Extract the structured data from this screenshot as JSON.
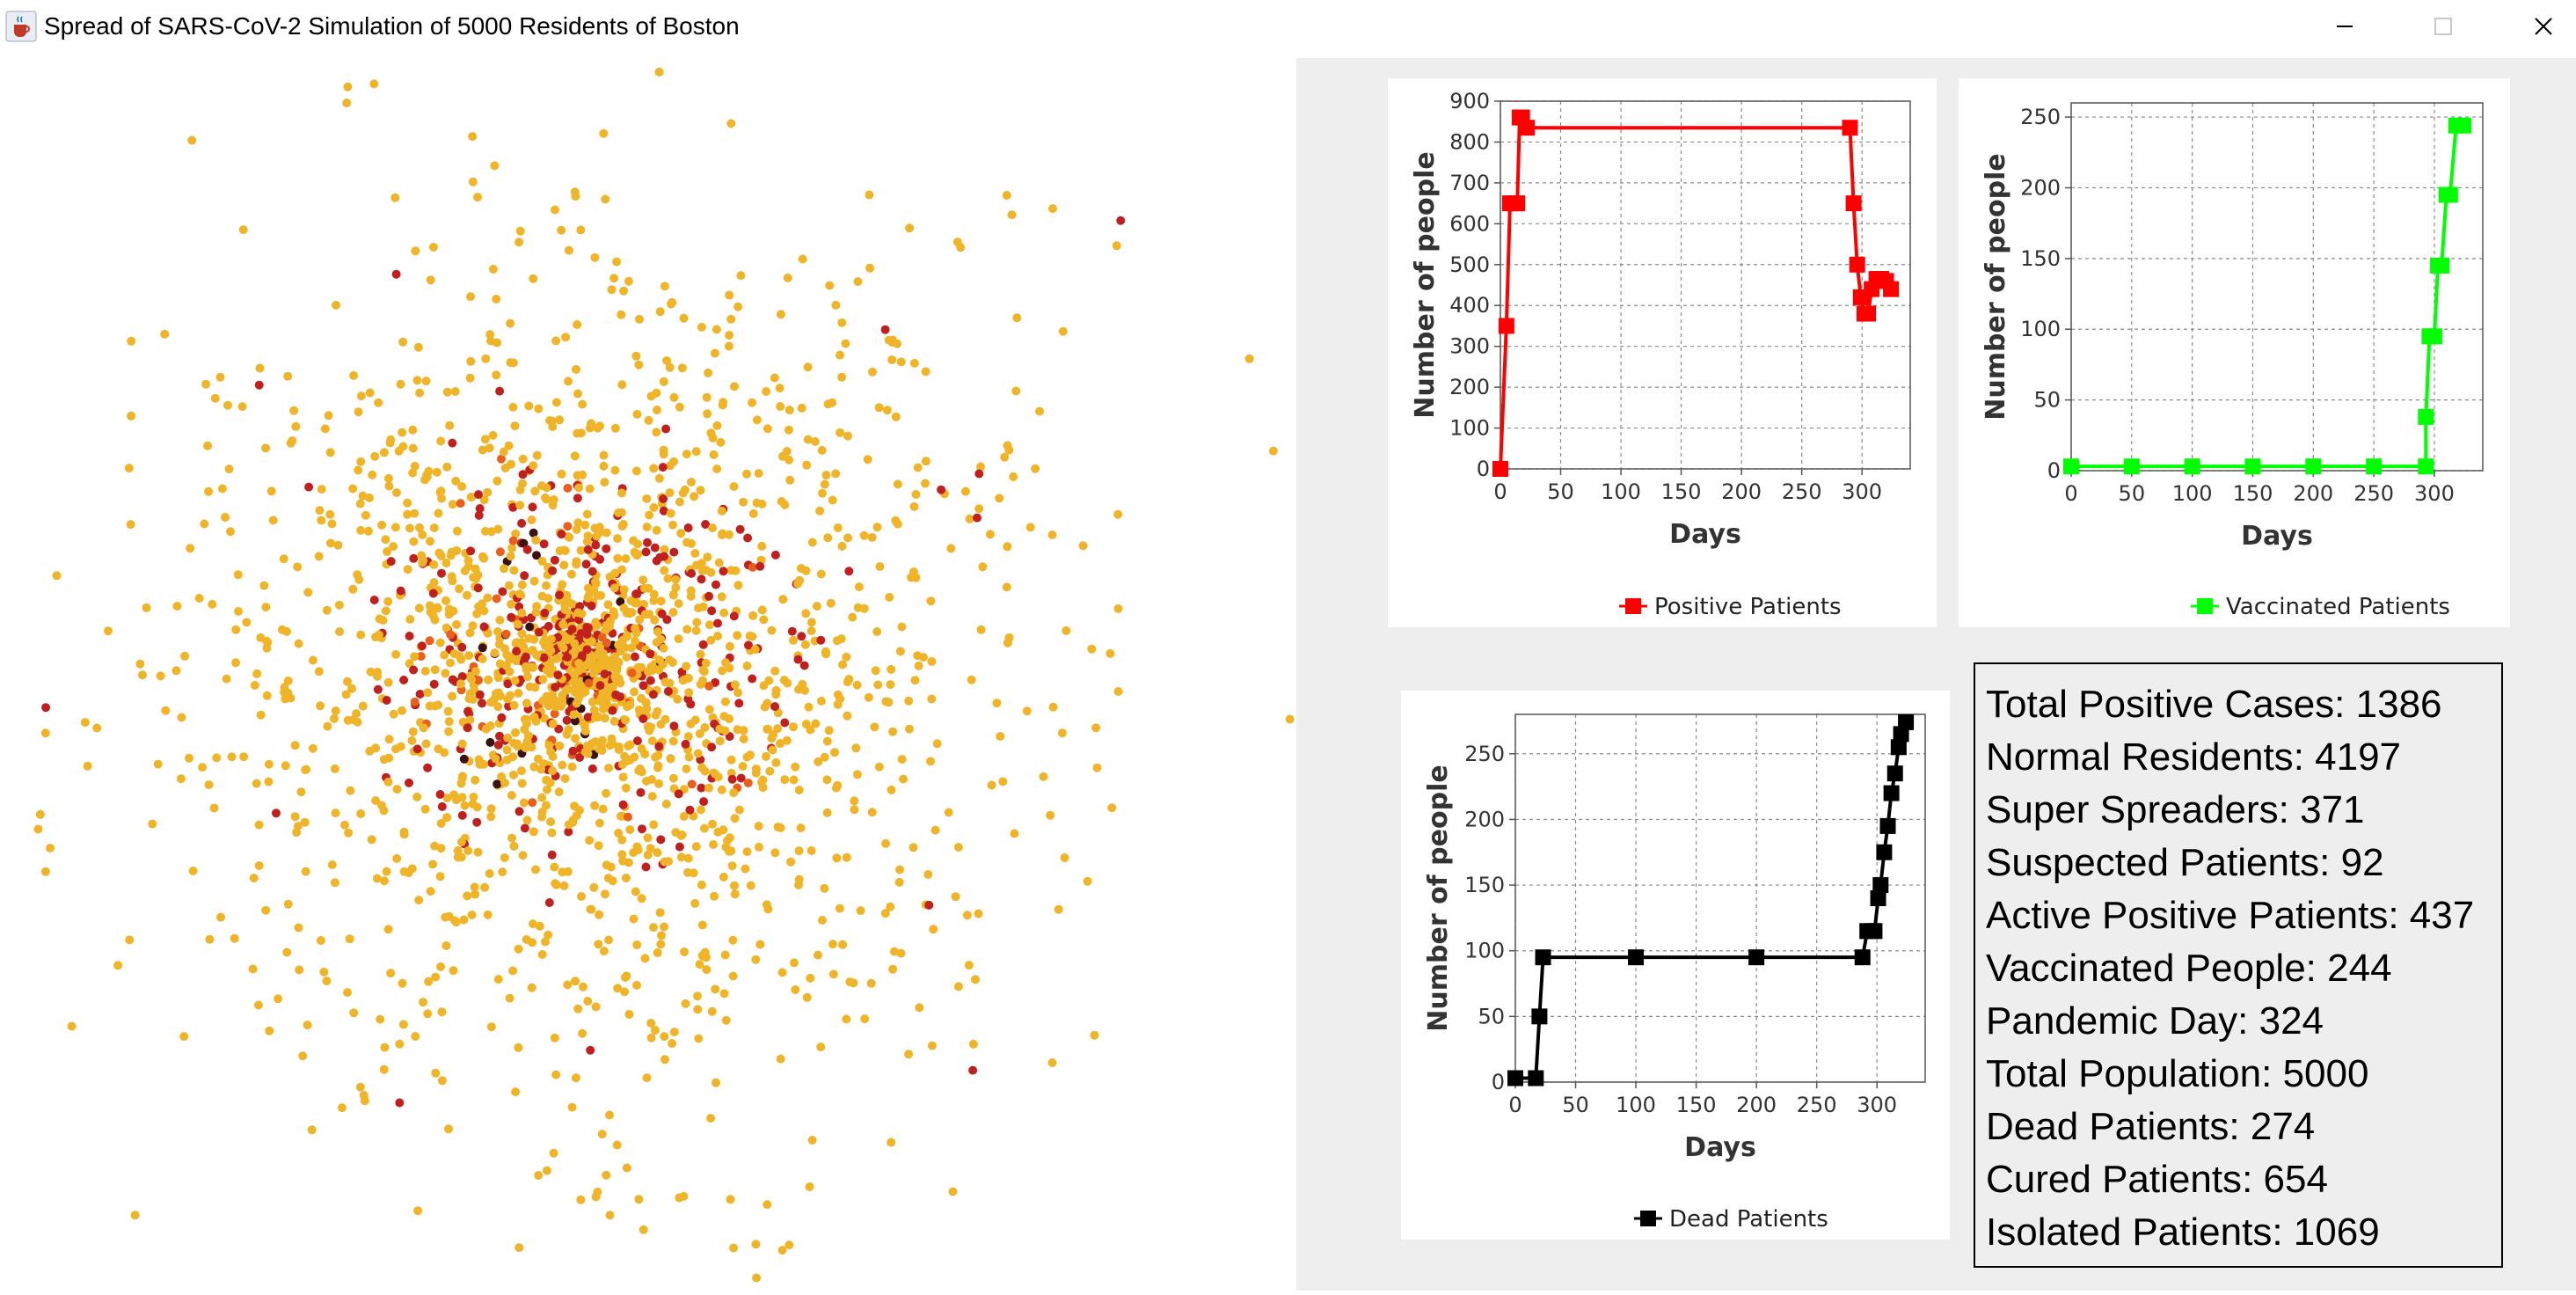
{
  "window": {
    "title": "Spread of SARS-CoV-2 Simulation of 5000 Residents of Boston",
    "app_icon": "java-cup-icon",
    "controls": [
      "minimize-icon",
      "maximize-icon",
      "close-icon"
    ]
  },
  "simulation": {
    "population_colors": {
      "normal": "#f0b429",
      "positive": "#c0201e",
      "exposed": "#e8601c",
      "dead": "#3a1212"
    }
  },
  "chart_data": [
    {
      "type": "line",
      "title": "",
      "xlabel": "Days",
      "ylabel": "Number of people",
      "xlim": [
        0,
        340
      ],
      "ylim": [
        0,
        900
      ],
      "xticks": [
        0,
        50,
        100,
        150,
        200,
        250,
        300
      ],
      "yticks": [
        0,
        100,
        200,
        300,
        400,
        500,
        600,
        700,
        800,
        900
      ],
      "grid": true,
      "legend_position": "bottom",
      "series": [
        {
          "name": "Positive Patients",
          "color": "#ff0000",
          "x": [
            0,
            5,
            8,
            12,
            14,
            16,
            18,
            22,
            290,
            293,
            296,
            299,
            302,
            305,
            308,
            312,
            316,
            320,
            324
          ],
          "y": [
            0,
            350,
            650,
            650,
            650,
            860,
            860,
            835,
            835,
            650,
            500,
            420,
            380,
            380,
            440,
            465,
            465,
            460,
            440
          ]
        }
      ]
    },
    {
      "type": "line",
      "title": "",
      "xlabel": "Days",
      "ylabel": "Number of people",
      "xlim": [
        0,
        340
      ],
      "ylim": [
        0,
        260
      ],
      "xticks": [
        0,
        50,
        100,
        150,
        200,
        250,
        300
      ],
      "yticks": [
        0,
        50,
        100,
        150,
        200,
        250
      ],
      "grid": true,
      "legend_position": "bottom",
      "series": [
        {
          "name": "Vaccinated Patients",
          "color": "#00ff00",
          "x": [
            0,
            50,
            100,
            150,
            200,
            250,
            293,
            293,
            296,
            300,
            303,
            306,
            310,
            313,
            318,
            324
          ],
          "y": [
            3,
            3,
            3,
            3,
            3,
            3,
            3,
            38,
            95,
            95,
            145,
            145,
            195,
            195,
            244,
            244
          ]
        }
      ]
    },
    {
      "type": "line",
      "title": "",
      "xlabel": "Days",
      "ylabel": "Number of people",
      "xlim": [
        0,
        340
      ],
      "ylim": [
        0,
        280
      ],
      "xticks": [
        0,
        50,
        100,
        150,
        200,
        250,
        300
      ],
      "yticks": [
        0,
        50,
        100,
        150,
        200,
        250
      ],
      "grid": true,
      "legend_position": "bottom",
      "series": [
        {
          "name": "Dead Patients",
          "color": "#000000",
          "x": [
            0,
            17,
            20,
            23,
            100,
            200,
            288,
            292,
            296,
            298,
            301,
            303,
            306,
            309,
            312,
            315,
            318,
            320,
            324
          ],
          "y": [
            3,
            3,
            50,
            95,
            95,
            95,
            95,
            115,
            115,
            115,
            140,
            150,
            175,
            195,
            220,
            235,
            255,
            265,
            274
          ]
        }
      ]
    }
  ],
  "stats": [
    {
      "label": "Total Positive Cases",
      "value": "1386"
    },
    {
      "label": "Normal Residents",
      "value": "4197"
    },
    {
      "label": "Super Spreaders",
      "value": "371"
    },
    {
      "label": "Suspected Patients",
      "value": "92"
    },
    {
      "label": "Active Positive Patients",
      "value": "437"
    },
    {
      "label": "Vaccinated People",
      "value": "244"
    },
    {
      "label": "Pandemic Day",
      "value": "324"
    },
    {
      "label": "Total Population",
      "value": "5000"
    },
    {
      "label": "Dead Patients",
      "value": "274"
    },
    {
      "label": "Cured Patients",
      "value": "654"
    },
    {
      "label": "Isolated Patients",
      "value": "1069"
    }
  ]
}
